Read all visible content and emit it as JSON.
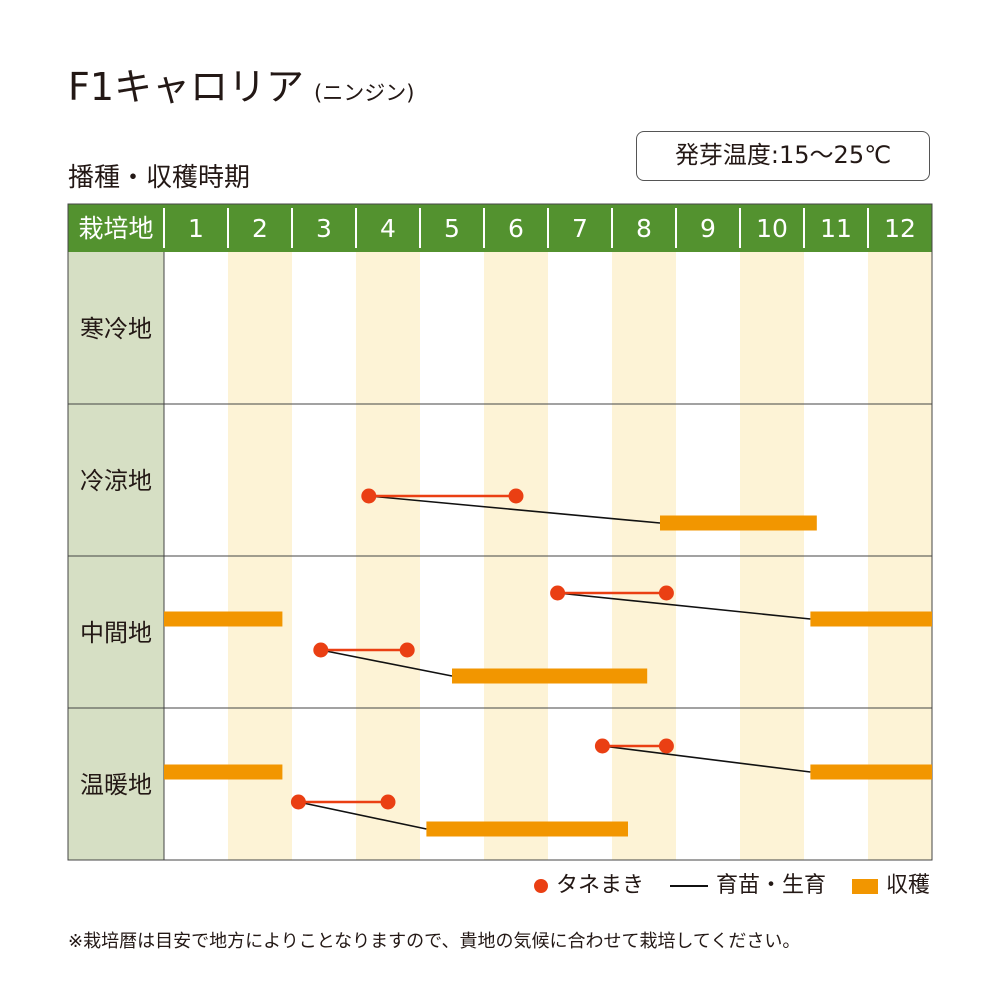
{
  "title": {
    "main": "F1キャロリア",
    "sub": "(ニンジン)"
  },
  "section_title": "播種・収穫時期",
  "germination": "発芽温度:15〜25℃",
  "colors": {
    "header": "#53922f",
    "region_col": "#d6dfc4",
    "even_month": "#fdf3d6",
    "sowing": "#ea3f13",
    "growing": "#111111",
    "harvest": "#f29600"
  },
  "legend": {
    "sowing": "タネまき",
    "growing": "育苗・生育",
    "harvest": "収穫"
  },
  "note": "※栽培暦は目安で地方によりことなりますので、貴地の気候に合わせて栽培してください。",
  "chart_data": {
    "type": "table",
    "header_label": "栽培地",
    "months": [
      "1",
      "2",
      "3",
      "4",
      "5",
      "6",
      "7",
      "8",
      "9",
      "10",
      "11",
      "12"
    ],
    "regions": [
      {
        "name": "寒冷地",
        "schedules": []
      },
      {
        "name": "冷涼地",
        "schedules": [
          {
            "sow": [
              4.2,
              6.5
            ],
            "harvest": [
              8.75,
              11.2
            ]
          }
        ]
      },
      {
        "name": "中間地",
        "schedules": [
          {
            "sow": [
              7.15,
              8.85
            ],
            "harvest": [
              11.1,
              13.0
            ]
          },
          {
            "sow": [
              null,
              null
            ],
            "harvest": [
              1.0,
              2.85
            ]
          },
          {
            "sow": [
              3.45,
              4.8
            ],
            "harvest": [
              5.5,
              8.55
            ]
          }
        ]
      },
      {
        "name": "温暖地",
        "schedules": [
          {
            "sow": [
              7.85,
              8.85
            ],
            "harvest": [
              11.1,
              13.0
            ]
          },
          {
            "sow": [
              null,
              null
            ],
            "harvest": [
              1.0,
              2.85
            ]
          },
          {
            "sow": [
              3.1,
              4.5
            ],
            "harvest": [
              5.1,
              8.25
            ]
          }
        ]
      }
    ]
  }
}
